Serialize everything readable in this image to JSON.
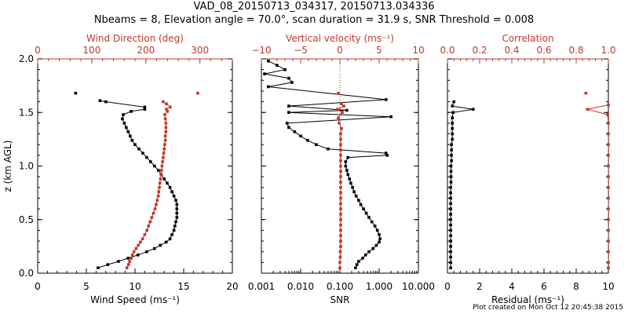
{
  "title_line1": "VAD_08_20150713_034317, 20150713.034336",
  "title_line2": "Nbeams = 8, Elevation angle = 70.0°, scan duration = 31.9 s, SNR Threshold = 0.008",
  "footer": "Plot created on Mon Oct 12 20:45:38 2015",
  "colors": {
    "primary": "#000000",
    "secondary": "#c0392b"
  },
  "chart_data": [
    {
      "type": "line",
      "ylabel": "z (km AGL)",
      "ylim": [
        0,
        2.0
      ],
      "yticks": [
        "0.0",
        "0.5",
        "1.0",
        "1.5",
        "2.0"
      ],
      "bottom_axis": {
        "label": "Wind Speed (ms⁻¹)",
        "lim": [
          0,
          20
        ],
        "ticks": [
          "0",
          "5",
          "10",
          "15",
          "20"
        ],
        "color": "#000000"
      },
      "top_axis": {
        "label": "Wind Direction (deg)",
        "lim": [
          0,
          360
        ],
        "ticks": [
          "0",
          "100",
          "200",
          "300"
        ],
        "color": "#c0392b"
      },
      "series": [
        {
          "axis": "bottom",
          "color": "#000000",
          "points": [
            [
              6.2,
              0.05
            ],
            [
              7.2,
              0.08
            ],
            [
              8.3,
              0.11
            ],
            [
              9.3,
              0.14
            ],
            [
              10.3,
              0.17
            ],
            [
              11.2,
              0.2
            ],
            [
              12.0,
              0.23
            ],
            [
              12.6,
              0.26
            ],
            [
              13.2,
              0.29
            ],
            [
              13.6,
              0.32
            ],
            [
              13.8,
              0.36
            ],
            [
              14.0,
              0.4
            ],
            [
              14.1,
              0.44
            ],
            [
              14.2,
              0.48
            ],
            [
              14.3,
              0.52
            ],
            [
              14.3,
              0.56
            ],
            [
              14.3,
              0.6
            ],
            [
              14.3,
              0.64
            ],
            [
              14.2,
              0.68
            ],
            [
              14.0,
              0.72
            ],
            [
              13.8,
              0.76
            ],
            [
              13.6,
              0.8
            ],
            [
              13.3,
              0.84
            ],
            [
              13.0,
              0.88
            ],
            [
              12.7,
              0.92
            ],
            [
              12.4,
              0.96
            ],
            [
              12.0,
              1.0
            ],
            [
              11.6,
              1.04
            ],
            [
              11.2,
              1.08
            ],
            [
              10.8,
              1.12
            ],
            [
              10.4,
              1.16
            ],
            [
              10.0,
              1.2
            ],
            [
              9.7,
              1.24
            ],
            [
              9.5,
              1.28
            ],
            [
              9.3,
              1.32
            ],
            [
              9.1,
              1.36
            ],
            [
              8.9,
              1.4
            ],
            [
              8.7,
              1.44
            ],
            [
              8.8,
              1.48
            ],
            [
              9.6,
              1.51
            ],
            [
              11.0,
              1.53
            ],
            [
              11.0,
              1.55
            ],
            [
              7.0,
              1.6
            ],
            [
              6.4,
              1.61
            ]
          ]
        },
        {
          "axis": "top",
          "color": "#c0392b",
          "points": [
            [
              165,
              0.05
            ],
            [
              168,
              0.08
            ],
            [
              170,
              0.11
            ],
            [
              173,
              0.14
            ],
            [
              175,
              0.17
            ],
            [
              178,
              0.2
            ],
            [
              182,
              0.23
            ],
            [
              186,
              0.26
            ],
            [
              190,
              0.29
            ],
            [
              194,
              0.32
            ],
            [
              198,
              0.36
            ],
            [
              202,
              0.4
            ],
            [
              205,
              0.44
            ],
            [
              208,
              0.48
            ],
            [
              211,
              0.52
            ],
            [
              214,
              0.56
            ],
            [
              217,
              0.6
            ],
            [
              219,
              0.64
            ],
            [
              221,
              0.68
            ],
            [
              223,
              0.72
            ],
            [
              224,
              0.76
            ],
            [
              225,
              0.8
            ],
            [
              226,
              0.84
            ],
            [
              227,
              0.88
            ],
            [
              228,
              0.92
            ],
            [
              229,
              0.96
            ],
            [
              230,
              1.0
            ],
            [
              231,
              1.04
            ],
            [
              232,
              1.08
            ],
            [
              233,
              1.12
            ],
            [
              234,
              1.16
            ],
            [
              235,
              1.2
            ],
            [
              236,
              1.24
            ],
            [
              236,
              1.28
            ],
            [
              237,
              1.32
            ],
            [
              237,
              1.36
            ],
            [
              237,
              1.4
            ],
            [
              236,
              1.44
            ],
            [
              235,
              1.48
            ],
            [
              240,
              1.51
            ],
            [
              238,
              1.53
            ],
            [
              245,
              1.55
            ],
            [
              238,
              1.58
            ],
            [
              232,
              1.6
            ]
          ]
        },
        {
          "axis": "bottom",
          "color": "#000000",
          "marker_only": true,
          "points": [
            [
              3.9,
              1.68
            ]
          ]
        },
        {
          "axis": "top",
          "color": "#c0392b",
          "marker_only": true,
          "points": [
            [
              296,
              1.68
            ]
          ]
        }
      ]
    },
    {
      "type": "line",
      "ylim": [
        0,
        2.0
      ],
      "bottom_axis": {
        "label": "SNR",
        "scale": "log",
        "lim": [
          0.001,
          10
        ],
        "ticks": [
          "0.001",
          "0.010",
          "0.100",
          "1.000",
          "10.000"
        ],
        "color": "#000000"
      },
      "top_axis": {
        "label": "Vertical velocity (ms⁻¹)",
        "lim": [
          -10,
          10
        ],
        "ticks": [
          "−10",
          "−5",
          "0",
          "5",
          "10"
        ],
        "color": "#c0392b"
      },
      "series": [
        {
          "axis": "bottom",
          "color": "#000000",
          "points": [
            [
              0.25,
              0.05
            ],
            [
              0.27,
              0.08
            ],
            [
              0.3,
              0.11
            ],
            [
              0.38,
              0.14
            ],
            [
              0.45,
              0.17
            ],
            [
              0.55,
              0.2
            ],
            [
              0.7,
              0.23
            ],
            [
              0.85,
              0.26
            ],
            [
              1.0,
              0.29
            ],
            [
              1.05,
              0.32
            ],
            [
              1.0,
              0.36
            ],
            [
              0.9,
              0.4
            ],
            [
              0.78,
              0.44
            ],
            [
              0.65,
              0.48
            ],
            [
              0.55,
              0.52
            ],
            [
              0.47,
              0.56
            ],
            [
              0.4,
              0.6
            ],
            [
              0.34,
              0.64
            ],
            [
              0.3,
              0.68
            ],
            [
              0.26,
              0.72
            ],
            [
              0.23,
              0.76
            ],
            [
              0.21,
              0.8
            ],
            [
              0.19,
              0.84
            ],
            [
              0.175,
              0.88
            ],
            [
              0.16,
              0.92
            ],
            [
              0.15,
              0.96
            ],
            [
              0.14,
              1.0
            ],
            [
              0.14,
              1.04
            ],
            [
              0.16,
              1.08
            ],
            [
              1.6,
              1.1
            ],
            [
              1.5,
              1.12
            ],
            [
              0.05,
              1.16
            ],
            [
              0.025,
              1.2
            ],
            [
              0.015,
              1.24
            ],
            [
              0.01,
              1.28
            ],
            [
              0.007,
              1.32
            ],
            [
              0.005,
              1.36
            ],
            [
              0.0045,
              1.4
            ],
            [
              2.0,
              1.46
            ],
            [
              0.005,
              1.5
            ],
            [
              0.15,
              1.52
            ],
            [
              0.005,
              1.56
            ],
            [
              1.5,
              1.62
            ],
            [
              0.0015,
              1.74
            ],
            [
              0.006,
              1.78
            ],
            [
              0.005,
              1.82
            ],
            [
              0.0012,
              1.86
            ],
            [
              0.004,
              1.9
            ],
            [
              0.0025,
              1.94
            ],
            [
              0.0015,
              1.98
            ]
          ]
        },
        {
          "axis": "top",
          "color": "#c0392b",
          "points": [
            [
              0.0,
              0.05
            ],
            [
              0.0,
              0.1
            ],
            [
              0.05,
              0.15
            ],
            [
              0.05,
              0.2
            ],
            [
              0.1,
              0.25
            ],
            [
              0.1,
              0.3
            ],
            [
              0.1,
              0.35
            ],
            [
              0.1,
              0.4
            ],
            [
              0.1,
              0.45
            ],
            [
              0.1,
              0.5
            ],
            [
              0.1,
              0.55
            ],
            [
              0.1,
              0.6
            ],
            [
              0.1,
              0.65
            ],
            [
              0.1,
              0.7
            ],
            [
              0.1,
              0.75
            ],
            [
              0.1,
              0.8
            ],
            [
              0.1,
              0.85
            ],
            [
              0.1,
              0.9
            ],
            [
              0.1,
              0.95
            ],
            [
              0.1,
              1.0
            ],
            [
              0.1,
              1.05
            ],
            [
              0.1,
              1.1
            ],
            [
              0.1,
              1.15
            ],
            [
              0.1,
              1.2
            ],
            [
              0.1,
              1.25
            ],
            [
              0.1,
              1.3
            ],
            [
              0.2,
              1.35
            ],
            [
              -0.1,
              1.4
            ],
            [
              -0.2,
              1.45
            ],
            [
              0.3,
              1.5
            ],
            [
              -0.3,
              1.53
            ],
            [
              0.5,
              1.56
            ],
            [
              0.2,
              1.58
            ]
          ]
        },
        {
          "axis": "top",
          "color": "#c0392b",
          "marker_only": true,
          "points": [
            [
              -0.2,
              1.68
            ]
          ]
        }
      ]
    },
    {
      "type": "line",
      "ylim": [
        0,
        2.0
      ],
      "bottom_axis": {
        "label": "Residual (ms⁻¹)",
        "lim": [
          0,
          10
        ],
        "ticks": [
          "0",
          "2",
          "4",
          "6",
          "8",
          "10"
        ],
        "color": "#000000"
      },
      "top_axis": {
        "label": "Correlation",
        "lim": [
          0,
          1
        ],
        "ticks": [
          "0.0",
          "0.2",
          "0.4",
          "0.6",
          "0.8",
          "1.0"
        ],
        "color": "#c0392b"
      },
      "series": [
        {
          "axis": "bottom",
          "color": "#000000",
          "points": [
            [
              0.2,
              0.05
            ],
            [
              0.2,
              0.1
            ],
            [
              0.2,
              0.15
            ],
            [
              0.2,
              0.2
            ],
            [
              0.2,
              0.25
            ],
            [
              0.2,
              0.3
            ],
            [
              0.2,
              0.35
            ],
            [
              0.2,
              0.4
            ],
            [
              0.2,
              0.45
            ],
            [
              0.2,
              0.5
            ],
            [
              0.2,
              0.55
            ],
            [
              0.2,
              0.6
            ],
            [
              0.2,
              0.65
            ],
            [
              0.2,
              0.7
            ],
            [
              0.2,
              0.75
            ],
            [
              0.2,
              0.8
            ],
            [
              0.22,
              0.85
            ],
            [
              0.22,
              0.9
            ],
            [
              0.22,
              0.95
            ],
            [
              0.22,
              1.0
            ],
            [
              0.25,
              1.05
            ],
            [
              0.25,
              1.1
            ],
            [
              0.25,
              1.15
            ],
            [
              0.25,
              1.2
            ],
            [
              0.3,
              1.25
            ],
            [
              0.3,
              1.3
            ],
            [
              0.3,
              1.35
            ],
            [
              0.3,
              1.4
            ],
            [
              0.3,
              1.45
            ],
            [
              0.35,
              1.5
            ],
            [
              1.6,
              1.53
            ],
            [
              0.3,
              1.56
            ],
            [
              0.4,
              1.6
            ]
          ]
        },
        {
          "axis": "top",
          "color": "#c0392b",
          "points": [
            [
              1.0,
              0.05
            ],
            [
              1.0,
              0.1
            ],
            [
              1.0,
              0.2
            ],
            [
              1.0,
              0.3
            ],
            [
              1.0,
              0.4
            ],
            [
              1.0,
              0.5
            ],
            [
              1.0,
              0.6
            ],
            [
              1.0,
              0.7
            ],
            [
              1.0,
              0.8
            ],
            [
              1.0,
              0.9
            ],
            [
              1.0,
              1.0
            ],
            [
              1.0,
              1.1
            ],
            [
              1.0,
              1.2
            ],
            [
              1.0,
              1.3
            ],
            [
              1.0,
              1.4
            ],
            [
              0.995,
              1.48
            ],
            [
              0.87,
              1.53
            ],
            [
              1.0,
              1.57
            ]
          ]
        },
        {
          "axis": "top",
          "color": "#c0392b",
          "marker_only": true,
          "points": [
            [
              0.86,
              1.68
            ]
          ]
        }
      ]
    }
  ]
}
